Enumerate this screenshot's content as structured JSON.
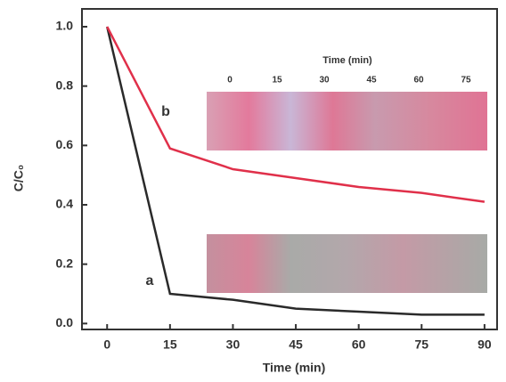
{
  "chart_data": {
    "type": "line",
    "x_label": "Time (min)",
    "y_label": "C/C₀",
    "x": [
      0,
      15,
      30,
      45,
      60,
      75,
      90
    ],
    "series": [
      {
        "name": "a",
        "color": "#2a2a2a",
        "values": [
          1.0,
          0.1,
          0.08,
          0.05,
          0.04,
          0.03,
          0.03
        ]
      },
      {
        "name": "b",
        "color": "#e0304a",
        "values": [
          1.0,
          0.59,
          0.52,
          0.49,
          0.46,
          0.44,
          0.41
        ]
      }
    ],
    "xlim": [
      -6,
      93
    ],
    "ylim": [
      -0.02,
      1.06
    ],
    "xticks": [
      0,
      15,
      30,
      45,
      60,
      75,
      90
    ],
    "yticks": [
      {
        "value": 0,
        "label": "0.0"
      },
      0.2,
      0.4,
      0.6,
      0.8,
      {
        "value": 1,
        "label": "1.0"
      }
    ],
    "inset": {
      "title": "Time (min)",
      "labels": [
        "0",
        "15",
        "30",
        "45",
        "60",
        "75"
      ]
    }
  }
}
